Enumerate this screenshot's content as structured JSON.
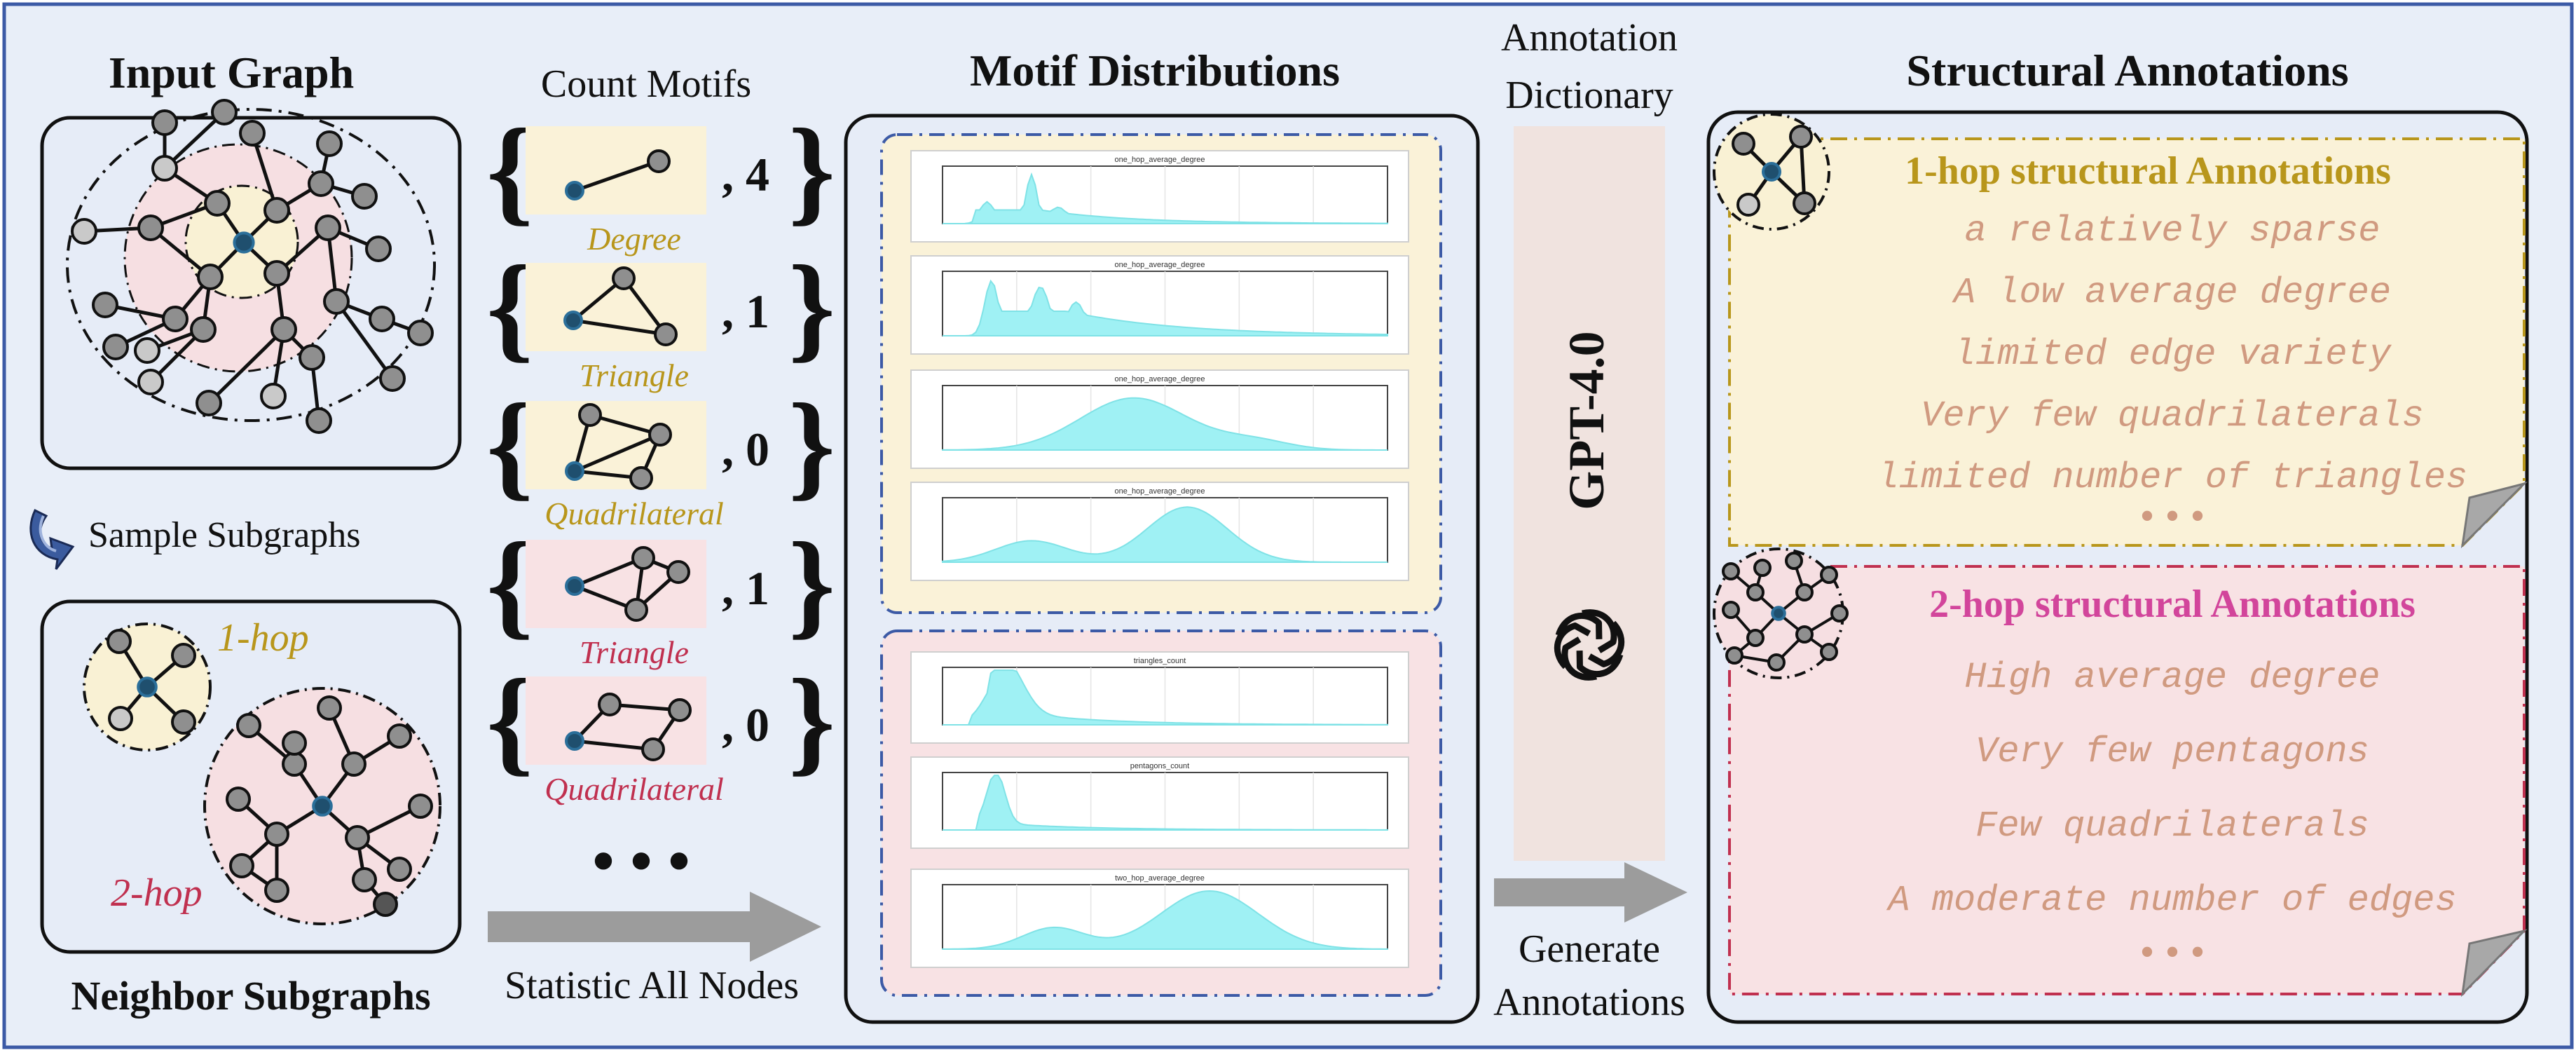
{
  "colors": {
    "background": "#e8eef8",
    "frame_blue": "#3c5aa6",
    "hop1_fill": "#faf2d8",
    "hop2_fill": "#f8e2e4",
    "hop1_text": "#b8961b",
    "hop2_text": "#c0304f",
    "hop2_title": "#d2459b",
    "annotation_text": "#d09a80",
    "curve_fill": "#9ff1f4"
  },
  "input_graph": {
    "title": "Input Graph"
  },
  "sample": {
    "label": "Sample Subgraphs",
    "icon": "curved-arrow-icon"
  },
  "neighbor": {
    "title": "Neighbor Subgraphs",
    "hop1_label": "1-hop",
    "hop2_label": "2-hop"
  },
  "count_motifs": {
    "title": "Count Motifs",
    "items": [
      {
        "label": "Degree",
        "count": ", 4",
        "hop": 1
      },
      {
        "label": "Triangle",
        "count": ", 1",
        "hop": 1
      },
      {
        "label": "Quadrilateral",
        "count": ", 0",
        "hop": 1
      },
      {
        "label": "Triangle",
        "count": ", 1",
        "hop": 2
      },
      {
        "label": "Quadrilateral",
        "count": ", 0",
        "hop": 2
      }
    ],
    "ellipsis": "• • •",
    "footer": "Statistic All Nodes"
  },
  "distributions": {
    "title": "Motif Distributions",
    "plots": [
      {
        "name": "one_hop_average_degree",
        "group": 1
      },
      {
        "name": "one_hop_average_degree",
        "group": 1
      },
      {
        "name": "one_hop_average_degree",
        "group": 1
      },
      {
        "name": "one_hop_average_degree",
        "group": 1
      },
      {
        "name": "triangles_count",
        "group": 2
      },
      {
        "name": "pentagons_count",
        "group": 2
      },
      {
        "name": "two_hop_average_degree",
        "group": 2
      }
    ]
  },
  "dictionary": {
    "title_line1": "Annotation",
    "title_line2": "Dictionary",
    "model": "GPT-4.0",
    "model_icon": "openai-logo-icon",
    "footer_line1": "Generate",
    "footer_line2": "Annotations"
  },
  "annotations": {
    "title": "Structural Annotations",
    "hop1": {
      "title": "1-hop structural Annotations",
      "items": [
        "a relatively sparse",
        "A low average degree",
        "limited edge variety",
        "Very few quadrilaterals",
        "limited number of triangles"
      ],
      "ellipsis": "• • •"
    },
    "hop2": {
      "title": "2-hop structural Annotations",
      "items": [
        "High average degree",
        "Very few pentagons",
        "Few quadrilaterals",
        "A moderate number of edges"
      ],
      "ellipsis": "• • •"
    }
  }
}
